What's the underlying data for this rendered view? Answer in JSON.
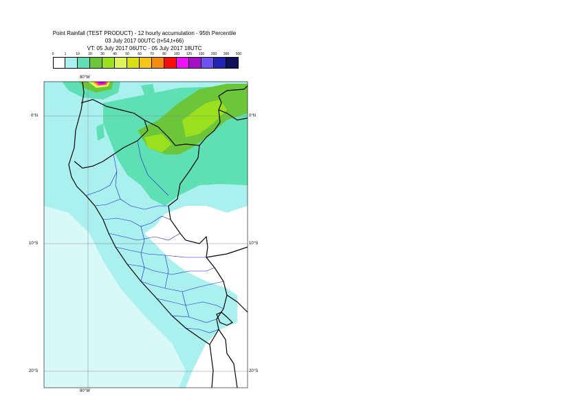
{
  "header": {
    "title": "Point Rainfall (TEST PRODUCT) - 12 hourly accumulation - 95th Percentile",
    "base_time": "03 July 2017 00UTC (t+54,t+66)",
    "valid_time": "VT: 05 July 2017 06UTC - 05 July 2017 18UTC"
  },
  "legend": {
    "thresholds": [
      "0",
      "1",
      "10",
      "20",
      "30",
      "40",
      "50",
      "60",
      "70",
      "80",
      "100",
      "125",
      "150",
      "200",
      "300",
      "500"
    ],
    "colors": [
      "#ffffff",
      "#aaf0ef",
      "#5ee0b4",
      "#6bc63a",
      "#9be01e",
      "#e0f55c",
      "#d8df14",
      "#f5c518",
      "#f58c0e",
      "#fa0d0d",
      "#f010f5",
      "#a50fc8",
      "#7050f0",
      "#2424b4",
      "#10105a"
    ]
  },
  "axes": {
    "lon_top": "80°W",
    "lon_bottom": "80°W",
    "lat_left": [
      "0°N",
      "10°S",
      "20°S"
    ],
    "lat_right": [
      "0°N",
      "10°S",
      "20°S"
    ]
  }
}
